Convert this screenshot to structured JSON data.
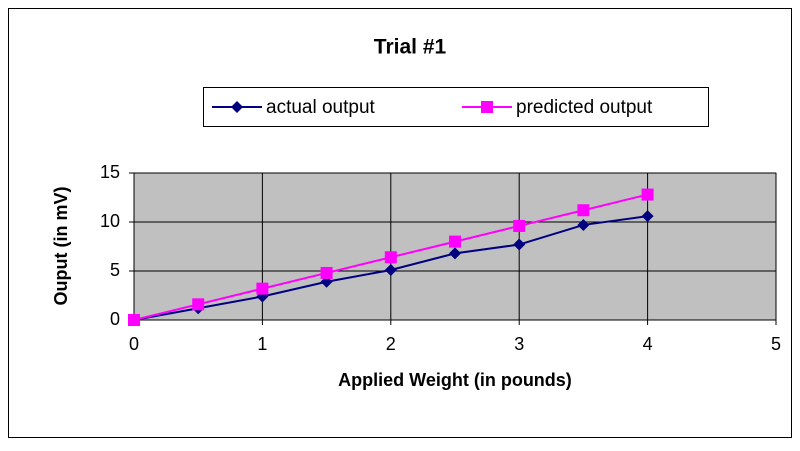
{
  "chart_data": {
    "type": "line",
    "title": "Trial #1",
    "x_label": "Applied Weight (in pounds)",
    "y_label": "Ouput (in mV)",
    "x": [
      0,
      0.5,
      1,
      1.5,
      2,
      2.5,
      3,
      3.5,
      4
    ],
    "series": [
      {
        "name": "actual output",
        "color": "#000080",
        "marker": "diamond",
        "values": [
          0,
          1.2,
          2.4,
          3.9,
          5.1,
          6.8,
          7.7,
          9.7,
          10.6
        ]
      },
      {
        "name": "predicted output",
        "color": "#ff00ff",
        "marker": "square",
        "values": [
          0,
          1.6,
          3.2,
          4.8,
          6.4,
          8.0,
          9.6,
          11.2,
          12.8
        ]
      }
    ],
    "xlim": [
      0,
      5
    ],
    "xticks": [
      0,
      1,
      2,
      3,
      4,
      5
    ],
    "ylim": [
      0,
      15
    ],
    "yticks": [
      0,
      5,
      10,
      15
    ],
    "grid": true,
    "legend": "top"
  }
}
